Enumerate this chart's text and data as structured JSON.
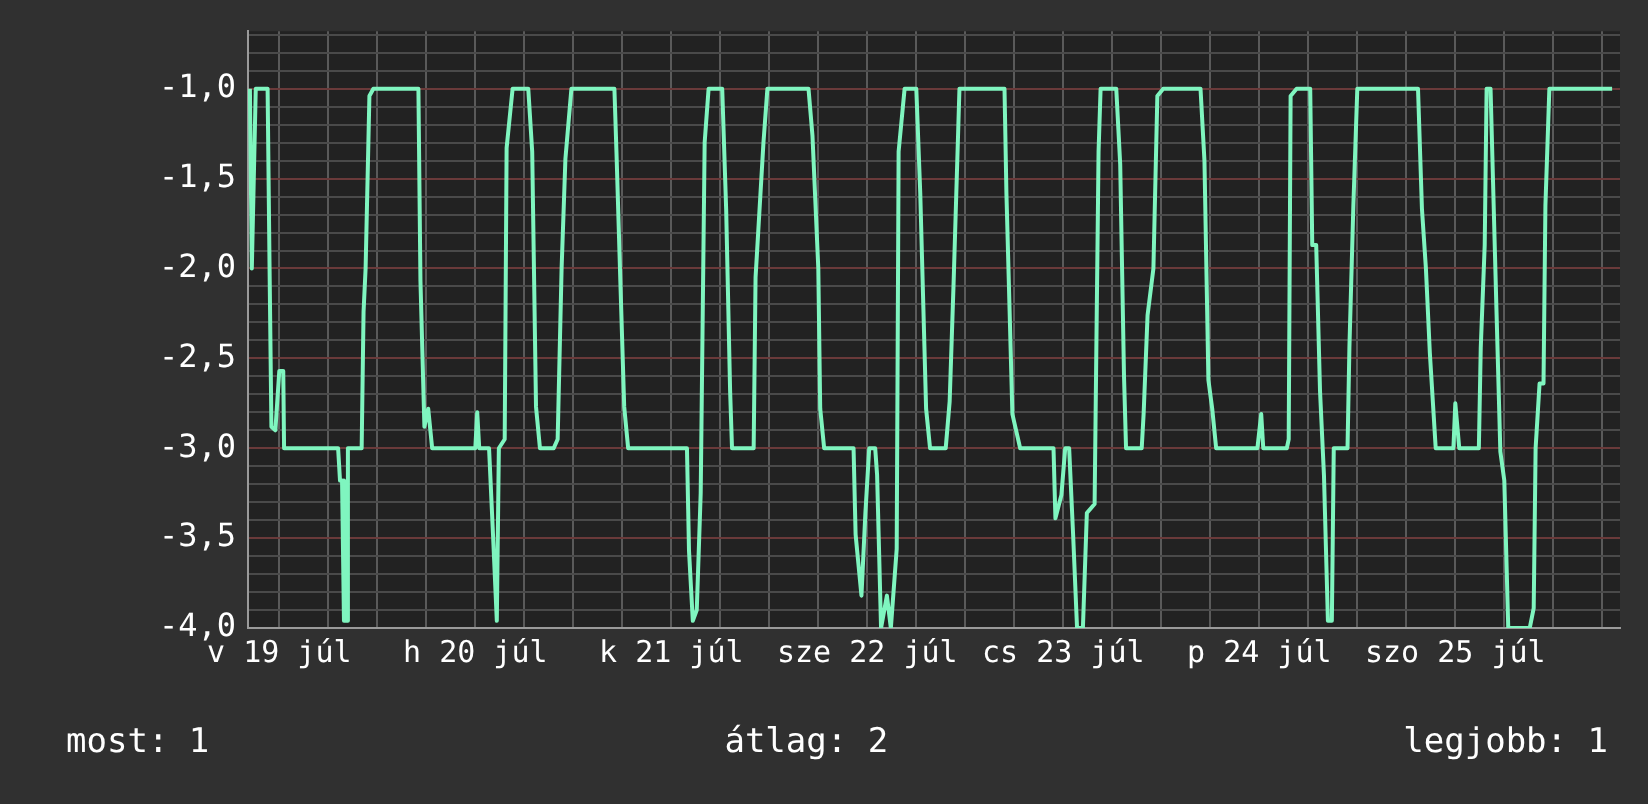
{
  "chart_data": {
    "type": "line",
    "x": [
      "--07-18T20:24",
      "--07-18T20:38",
      "--07-18T21:07",
      "--07-18T22:34",
      "--07-18T22:48",
      "--07-18T23:02",
      "--07-18T23:31",
      "--07-19T00:00",
      "--07-19T00:29",
      "--07-19T00:35",
      "--07-19T07:12",
      "--07-19T07:26",
      "--07-19T07:41",
      "--07-19T07:55",
      "--07-19T08:10",
      "--07-19T08:24",
      "--07-19T10:05",
      "--07-19T10:19",
      "--07-19T10:34",
      "--07-19T11:02",
      "--07-19T11:31",
      "--07-19T17:02",
      "--07-19T17:17",
      "--07-19T17:46",
      "--07-19T18:14",
      "--07-19T18:43",
      "--07-20T00:00",
      "--07-20T00:14",
      "--07-20T00:29",
      "--07-20T01:41",
      "--07-20T02:10",
      "--07-20T02:38",
      "--07-20T02:53",
      "--07-20T03:36",
      "--07-20T03:50",
      "--07-20T04:34",
      "--07-20T06:29",
      "--07-20T06:58",
      "--07-20T07:26",
      "--07-20T07:55",
      "--07-20T09:36",
      "--07-20T10:05",
      "--07-20T10:34",
      "--07-20T11:02",
      "--07-20T11:46",
      "--07-20T17:02",
      "--07-20T17:17",
      "--07-20T17:46",
      "--07-20T18:14",
      "--07-20T18:43",
      "--07-21T01:55",
      "--07-21T02:10",
      "--07-21T02:38",
      "--07-21T03:07",
      "--07-21T03:36",
      "--07-21T04:05",
      "--07-21T04:34",
      "--07-21T06:14",
      "--07-21T06:43",
      "--07-21T07:12",
      "--07-21T07:26",
      "--07-21T10:05",
      "--07-21T10:19",
      "--07-21T11:17",
      "--07-21T11:46",
      "--07-21T16:48",
      "--07-21T17:17",
      "--07-21T18:00",
      "--07-21T18:14",
      "--07-21T18:43",
      "--07-21T22:19",
      "--07-21T22:34",
      "--07-21T23:17",
      "--07-21T23:46",
      "--07-22T00:14",
      "--07-22T00:58",
      "--07-22T01:12",
      "--07-22T01:41",
      "--07-22T02:24",
      "--07-22T02:53",
      "--07-22T03:36",
      "--07-22T03:50",
      "--07-22T04:34",
      "--07-22T06:00",
      "--07-22T06:29",
      "--07-22T07:12",
      "--07-22T07:41",
      "--07-22T09:36",
      "--07-22T10:05",
      "--07-22T10:34",
      "--07-22T11:17",
      "--07-22T16:48",
      "--07-22T17:02",
      "--07-22T17:46",
      "--07-22T18:43",
      "--07-22T22:48",
      "--07-22T23:02",
      "--07-22T23:46",
      "--07-23T00:14",
      "--07-23T00:43",
      "--07-23T01:12",
      "--07-23T01:41",
      "--07-23T02:24",
      "--07-23T02:53",
      "--07-23T03:50",
      "--07-23T04:19",
      "--07-23T04:34",
      "--07-23T06:29",
      "--07-23T06:58",
      "--07-23T07:26",
      "--07-23T07:41",
      "--07-23T09:36",
      "--07-23T09:50",
      "--07-23T10:19",
      "--07-23T11:02",
      "--07-23T11:31",
      "--07-23T12:14",
      "--07-23T16:48",
      "--07-23T17:17",
      "--07-23T17:46",
      "--07-23T18:14",
      "--07-23T18:43",
      "--07-23T23:46",
      "--07-24T00:14",
      "--07-24T00:29",
      "--07-24T03:22",
      "--07-24T03:36",
      "--07-24T03:50",
      "--07-24T04:34",
      "--07-24T06:14",
      "--07-24T06:29",
      "--07-24T06:58",
      "--07-24T07:26",
      "--07-24T07:55",
      "--07-24T08:24",
      "--07-24T08:53",
      "--07-24T09:07",
      "--07-24T10:48",
      "--07-24T11:02",
      "--07-24T11:31",
      "--07-24T12:00",
      "--07-24T19:26",
      "--07-24T19:55",
      "--07-24T20:24",
      "--07-24T20:53",
      "--07-24T21:36",
      "--07-24T23:46",
      "--07-25T00:00",
      "--07-25T00:29",
      "--07-25T02:53",
      "--07-25T03:07",
      "--07-25T03:36",
      "--07-25T03:50",
      "--07-25T04:19",
      "--07-25T05:02",
      "--07-25T05:31",
      "--07-25T06:00",
      "--07-25T06:29",
      "--07-25T09:07",
      "--07-25T09:36",
      "--07-25T09:50",
      "--07-25T10:19",
      "--07-25T10:48",
      "--07-25T11:02",
      "--07-25T11:31",
      "--07-25T19:12"
    ],
    "series": [
      {
        "color": "#7ff5bf",
        "values": [
          -1.0,
          -2.0,
          -1.0,
          -1.0,
          -1.97,
          -2.88,
          -2.9,
          -2.57,
          -2.57,
          -3.0,
          -3.0,
          -3.18,
          -3.18,
          -3.96,
          -3.96,
          -3.0,
          -3.0,
          -2.24,
          -2.0,
          -1.04,
          -1.0,
          -1.0,
          -2.07,
          -2.88,
          -2.78,
          -3.0,
          -3.0,
          -2.8,
          -3.0,
          -3.0,
          -3.48,
          -3.96,
          -3.0,
          -2.95,
          -1.33,
          -1.0,
          -1.0,
          -1.35,
          -2.77,
          -3.0,
          -3.0,
          -2.95,
          -2.0,
          -1.39,
          -1.0,
          -1.0,
          -1.35,
          -2.08,
          -2.77,
          -3.0,
          -3.0,
          -3.57,
          -3.96,
          -3.9,
          -3.25,
          -1.3,
          -1.0,
          -1.0,
          -1.67,
          -2.68,
          -3.0,
          -3.0,
          -2.05,
          -1.3,
          -1.0,
          -1.0,
          -1.26,
          -2.0,
          -2.78,
          -3.0,
          -3.0,
          -3.48,
          -3.82,
          -3.36,
          -3.0,
          -3.0,
          -3.15,
          -4.0,
          -3.82,
          -4.0,
          -3.56,
          -1.35,
          -1.0,
          -1.0,
          -1.58,
          -2.78,
          -3.0,
          -3.0,
          -2.74,
          -2.08,
          -1.0,
          -1.0,
          -1.58,
          -2.81,
          -3.0,
          -3.0,
          -3.39,
          -3.26,
          -3.0,
          -3.0,
          -3.48,
          -4.0,
          -4.0,
          -3.36,
          -3.31,
          -1.35,
          -1.0,
          -1.0,
          -1.42,
          -2.6,
          -3.0,
          -3.0,
          -2.81,
          -2.26,
          -2.0,
          -1.04,
          -1.0,
          -1.0,
          -1.4,
          -2.62,
          -2.78,
          -3.0,
          -3.0,
          -2.81,
          -3.0,
          -3.0,
          -2.95,
          -1.04,
          -1.0,
          -1.0,
          -1.87,
          -1.87,
          -2.68,
          -3.15,
          -3.96,
          -3.96,
          -3.0,
          -3.0,
          -2.44,
          -1.65,
          -1.0,
          -1.0,
          -1.67,
          -2.0,
          -2.47,
          -3.0,
          -3.0,
          -2.75,
          -3.0,
          -3.0,
          -2.44,
          -1.87,
          -1.0,
          -1.0,
          -2.22,
          -3.02,
          -3.18,
          -4.0,
          -4.0,
          -3.89,
          -3.0,
          -2.64,
          -2.64,
          -1.65,
          -1.0,
          -1.0
        ]
      }
    ],
    "xlim": [
      "--07-18T20:10",
      "--07-25T20:10"
    ],
    "xticks": [
      {
        "value": "--07-19",
        "label": "v 19 júl"
      },
      {
        "value": "--07-19T06:00",
        "label": null
      },
      {
        "value": "--07-19T12:00",
        "label": null
      },
      {
        "value": "--07-19T18:00",
        "label": null
      },
      {
        "value": "--07-20",
        "label": "h 20 júl"
      },
      {
        "value": "--07-20T06:00",
        "label": null
      },
      {
        "value": "--07-20T12:00",
        "label": null
      },
      {
        "value": "--07-20T18:00",
        "label": null
      },
      {
        "value": "--07-21",
        "label": "k 21 júl"
      },
      {
        "value": "--07-21T06:00",
        "label": null
      },
      {
        "value": "--07-21T12:00",
        "label": null
      },
      {
        "value": "--07-21T18:00",
        "label": null
      },
      {
        "value": "--07-22",
        "label": "sze 22 júl"
      },
      {
        "value": "--07-22T06:00",
        "label": null
      },
      {
        "value": "--07-22T12:00",
        "label": null
      },
      {
        "value": "--07-22T18:00",
        "label": null
      },
      {
        "value": "--07-23",
        "label": "cs 23 júl"
      },
      {
        "value": "--07-23T06:00",
        "label": null
      },
      {
        "value": "--07-23T12:00",
        "label": null
      },
      {
        "value": "--07-23T18:00",
        "label": null
      },
      {
        "value": "--07-24",
        "label": "p 24 júl"
      },
      {
        "value": "--07-24T06:00",
        "label": null
      },
      {
        "value": "--07-24T12:00",
        "label": null
      },
      {
        "value": "--07-24T18:00",
        "label": null
      },
      {
        "value": "--07-25",
        "label": "szo 25 júl"
      },
      {
        "value": "--07-25T06:00",
        "label": null
      },
      {
        "value": "--07-25T12:00",
        "label": null
      },
      {
        "value": "--07-25T18:00",
        "label": null
      }
    ],
    "ylim": [
      -4.0,
      -0.68
    ],
    "yticks": [
      {
        "value": -4.0,
        "label": "-4,0"
      },
      {
        "value": -3.9,
        "label": null
      },
      {
        "value": -3.8,
        "label": null
      },
      {
        "value": -3.7,
        "label": null
      },
      {
        "value": -3.6,
        "label": null
      },
      {
        "value": -3.5,
        "label": "-3,5"
      },
      {
        "value": -3.4,
        "label": null
      },
      {
        "value": -3.3,
        "label": null
      },
      {
        "value": -3.2,
        "label": null
      },
      {
        "value": -3.1,
        "label": null
      },
      {
        "value": -3.0,
        "label": "-3,0"
      },
      {
        "value": -2.9,
        "label": null
      },
      {
        "value": -2.8,
        "label": null
      },
      {
        "value": -2.7,
        "label": null
      },
      {
        "value": -2.6,
        "label": null
      },
      {
        "value": -2.5,
        "label": "-2,5"
      },
      {
        "value": -2.4,
        "label": null
      },
      {
        "value": -2.3,
        "label": null
      },
      {
        "value": -2.2,
        "label": null
      },
      {
        "value": -2.1,
        "label": null
      },
      {
        "value": -2.0,
        "label": "-2,0"
      },
      {
        "value": -1.9,
        "label": null
      },
      {
        "value": -1.8,
        "label": null
      },
      {
        "value": -1.7,
        "label": null
      },
      {
        "value": -1.6,
        "label": null
      },
      {
        "value": -1.5,
        "label": "-1,5"
      },
      {
        "value": -1.4,
        "label": null
      },
      {
        "value": -1.3,
        "label": null
      },
      {
        "value": -1.2,
        "label": null
      },
      {
        "value": -1.1,
        "label": null
      },
      {
        "value": -1.0,
        "label": "-1,0"
      },
      {
        "value": -0.9,
        "label": null
      },
      {
        "value": -0.8,
        "label": null
      },
      {
        "value": -0.7,
        "label": null
      }
    ],
    "grid": true,
    "annotations": [
      "most: 1",
      "átlag: 2",
      "legjobb: 1"
    ]
  }
}
